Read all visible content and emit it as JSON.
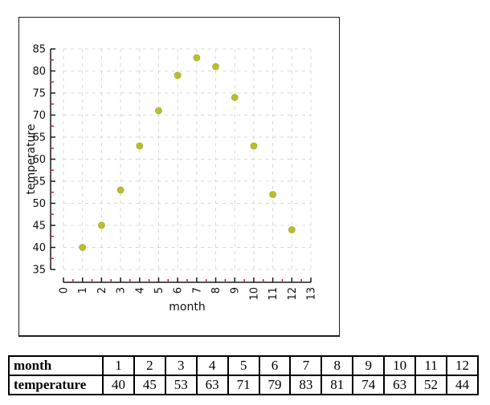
{
  "chart_data": {
    "type": "scatter",
    "x": [
      1,
      2,
      3,
      4,
      5,
      6,
      7,
      8,
      9,
      10,
      11,
      12
    ],
    "y": [
      40,
      45,
      53,
      63,
      71,
      79,
      83,
      81,
      74,
      63,
      52,
      44
    ],
    "title": "",
    "xlabel": "month",
    "ylabel": "temperature",
    "xlim": [
      0,
      13
    ],
    "ylim": [
      35,
      85
    ],
    "x_major_step": 1,
    "x_minor_step": 0.5,
    "y_major_step": 5,
    "y_minor_step": 2.5,
    "grid": "dashed",
    "legend": "none",
    "point_color": "#b9be2f",
    "grid_color": "#d8d8d8",
    "axis_color": "#1a1a1a",
    "minor_tick_color": "#cc2222",
    "tick_label_color": "#111111"
  },
  "table": {
    "rows": [
      {
        "label": "month",
        "values": [
          "1",
          "2",
          "3",
          "4",
          "5",
          "6",
          "7",
          "8",
          "9",
          "10",
          "11",
          "12"
        ]
      },
      {
        "label": "temperature",
        "values": [
          "40",
          "45",
          "53",
          "63",
          "71",
          "79",
          "83",
          "81",
          "74",
          "63",
          "52",
          "44"
        ]
      }
    ]
  }
}
